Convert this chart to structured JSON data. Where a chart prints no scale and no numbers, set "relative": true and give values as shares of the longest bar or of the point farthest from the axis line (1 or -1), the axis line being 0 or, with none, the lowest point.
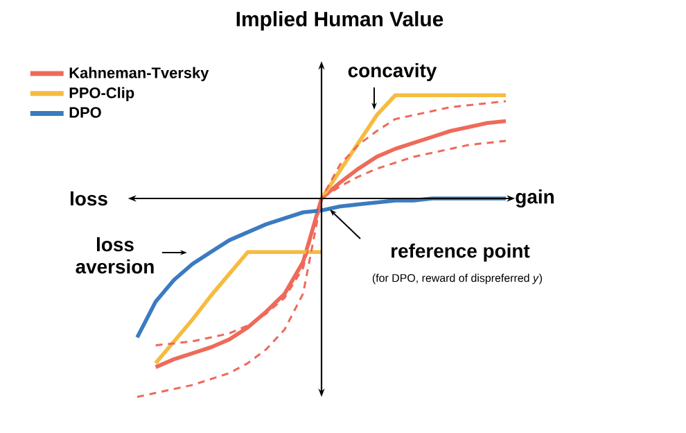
{
  "chart_data": {
    "type": "line",
    "title": "Implied Human Value",
    "relative": true,
    "legend": "top left",
    "line_style": "solid",
    "categories": [
      null,
      null,
      null,
      null,
      null,
      null,
      null,
      null,
      null,
      null,
      null,
      null,
      null,
      null,
      null,
      null,
      null,
      null,
      null,
      null,
      null
    ],
    "series": [
      {
        "name": "Kahneman-Tversky",
        "color": "#ee6a5a",
        "values": [
          null,
          -0.85,
          -0.81,
          -0.78,
          -0.75,
          -0.71,
          -0.65,
          -0.57,
          -0.48,
          -0.32,
          0,
          0.08,
          0.15,
          0.21,
          0.25,
          0.28,
          0.31,
          0.34,
          0.36,
          0.38,
          0.39
        ]
      },
      {
        "name": "PPO-Clip",
        "color": "#f5bc3f",
        "values": [
          null,
          -0.83,
          -0.72,
          -0.61,
          -0.49,
          -0.38,
          -0.27,
          -0.27,
          -0.27,
          -0.27,
          -0.27,
          null,
          null,
          null,
          null,
          null,
          null,
          null,
          null,
          null,
          null
        ]
      },
      {
        "name": "DPO",
        "color": "#3b7bc0",
        "values": [
          -0.7,
          -0.52,
          -0.41,
          -0.33,
          -0.27,
          -0.21,
          -0.17,
          -0.13,
          -0.1,
          -0.07,
          -0.06,
          -0.04,
          -0.03,
          -0.02,
          -0.01,
          -0.01,
          0,
          0,
          0,
          0,
          0
        ]
      },
      {
        "color": "#f5bc3f",
        "values": [
          null,
          null,
          null,
          null,
          null,
          null,
          null,
          null,
          null,
          null,
          0,
          0.14,
          0.28,
          0.42,
          0.52,
          0.52,
          0.52,
          0.52,
          0.52,
          0.52,
          0.52
        ]
      },
      {
        "color": "#ee6a5a",
        "line_style": "dashed",
        "values": [
          -1.0,
          -0.98,
          -0.96,
          -0.94,
          -0.91,
          -0.88,
          -0.83,
          -0.76,
          -0.66,
          -0.48,
          0,
          0.17,
          0.27,
          0.34,
          0.4,
          0.42,
          0.44,
          0.46,
          0.47,
          0.48,
          0.49
        ]
      },
      {
        "color": "#ee6a5a",
        "line_style": "dashed",
        "values": [
          null,
          -0.74,
          -0.73,
          -0.72,
          -0.7,
          -0.68,
          -0.64,
          -0.58,
          -0.5,
          -0.35,
          0,
          0.06,
          0.11,
          0.15,
          0.18,
          0.21,
          0.23,
          0.25,
          0.27,
          0.28,
          0.29
        ]
      }
    ],
    "annotations": [
      "loss",
      "gain",
      "concavity",
      "loss aversion",
      "reference point",
      "(for DPO, reward of dispreferred *y*)"
    ]
  }
}
